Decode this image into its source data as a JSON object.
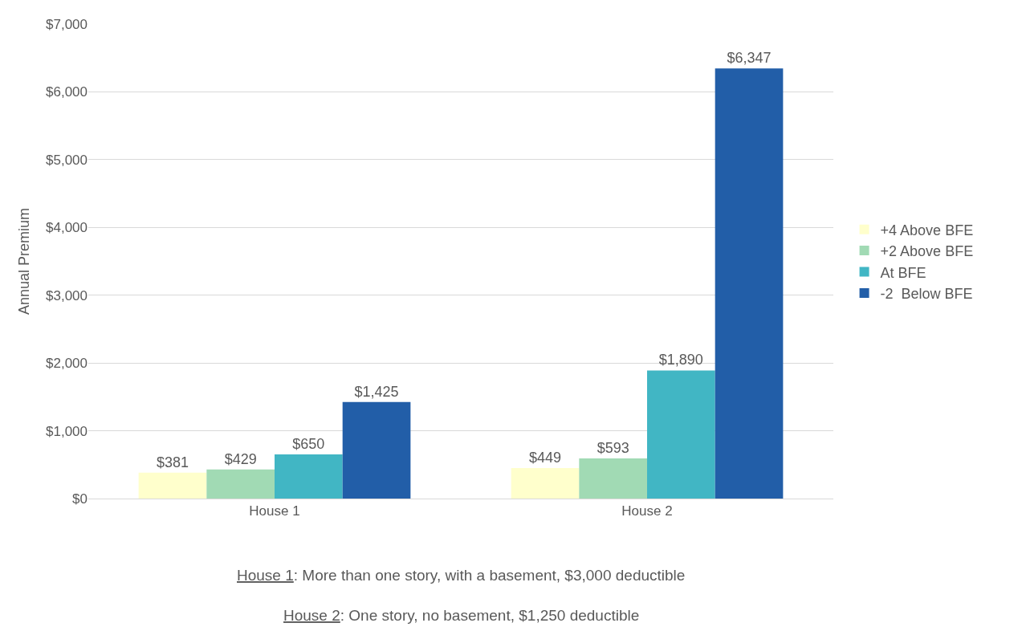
{
  "chart_data": {
    "type": "bar",
    "ylabel": "Annual Premium",
    "categories": [
      "House 1",
      "House 2"
    ],
    "series": [
      {
        "name": "+4 Above BFE",
        "color": "#ffffcc",
        "values": [
          381,
          449
        ],
        "value_labels": [
          "$381",
          "$449"
        ]
      },
      {
        "name": "+2 Above BFE",
        "color": "#a1dab4",
        "values": [
          429,
          593
        ],
        "value_labels": [
          "$429",
          "$593"
        ]
      },
      {
        "name": "At BFE",
        "color": "#41b6c4",
        "values": [
          650,
          1890
        ],
        "value_labels": [
          "$650",
          "$1,890"
        ]
      },
      {
        "name": "-2  Below BFE",
        "color": "#225ea8",
        "values": [
          1425,
          6347
        ],
        "value_labels": [
          "$1,425",
          "$6,347"
        ]
      }
    ],
    "ylim": [
      0,
      7000
    ],
    "yticks": [
      {
        "value": 0,
        "label": "$0"
      },
      {
        "value": 1000,
        "label": "$1,000"
      },
      {
        "value": 2000,
        "label": "$2,000"
      },
      {
        "value": 3000,
        "label": "$3,000"
      },
      {
        "value": 4000,
        "label": "$4,000"
      },
      {
        "value": 5000,
        "label": "$5,000"
      },
      {
        "value": 6000,
        "label": "$6,000"
      },
      {
        "value": 7000,
        "label": "$7,000"
      }
    ],
    "grid": "y",
    "legend": "right",
    "annotations": [
      "House 1: More than one story, with a basement, $3,000 deductible",
      "House 2: One story, no basement, $1,250 deductible"
    ]
  }
}
